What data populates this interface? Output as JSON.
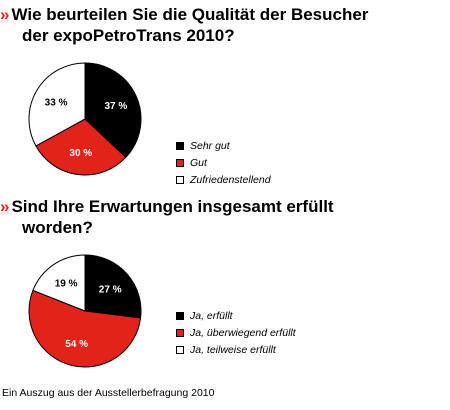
{
  "colors": {
    "accent": "#e2231a",
    "black": "#000000",
    "white": "#ffffff"
  },
  "marker": "»",
  "chart_data": [
    {
      "type": "pie",
      "title_line1": "Wie beurteilen Sie die Qualität der Besucher",
      "title_line2": "der expoPetroTrans 2010?",
      "slices": [
        {
          "name": "Sehr gut",
          "value": 37,
          "label": "37 %",
          "color": "#000000",
          "label_color": "#ffffff"
        },
        {
          "name": "Gut",
          "value": 30,
          "label": "30 %",
          "color": "#e2231a",
          "label_color": "#ffffff"
        },
        {
          "name": "Zufriedenstellend",
          "value": 33,
          "label": "33 %",
          "color": "#ffffff",
          "label_color": "#000000"
        }
      ],
      "legend_position": "right"
    },
    {
      "type": "pie",
      "title_line1": "Sind Ihre Erwartungen insgesamt erfüllt",
      "title_line2": "worden?",
      "slices": [
        {
          "name": "Ja, erfüllt",
          "value": 27,
          "label": "27 %",
          "color": "#000000",
          "label_color": "#ffffff"
        },
        {
          "name": "Ja, überwiegend erfüllt",
          "value": 54,
          "label": "54 %",
          "color": "#e2231a",
          "label_color": "#ffffff"
        },
        {
          "name": "Ja, teilweise erfüllt",
          "value": 19,
          "label": "19 %",
          "color": "#ffffff",
          "label_color": "#000000"
        }
      ],
      "legend_position": "right"
    }
  ],
  "footer": "Ein Auszug aus der Ausstellerbefragung 2010"
}
